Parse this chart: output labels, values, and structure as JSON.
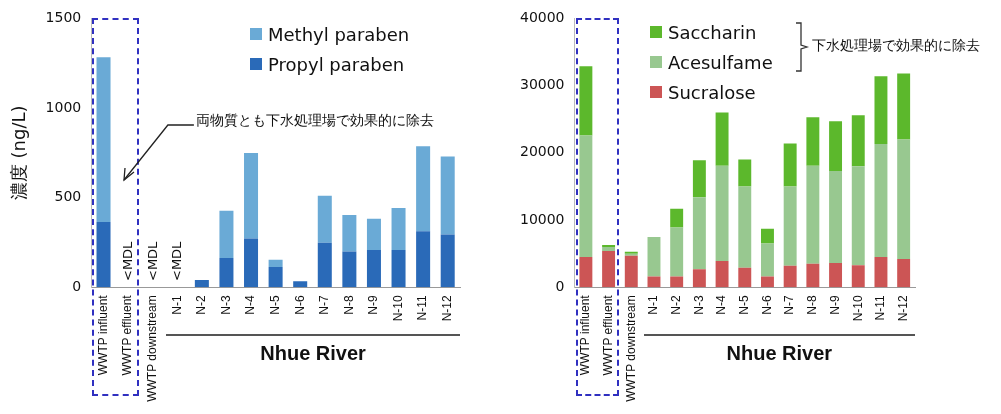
{
  "chart_data": [
    {
      "type": "bar",
      "ylabel": "濃度 (ng/L)",
      "categories": [
        "WWTP influent",
        "WWTP effluent",
        "WWTP downstream",
        "N-1",
        "N-2",
        "N-3",
        "N-4",
        "N-5",
        "N-6",
        "N-7",
        "N-8",
        "N-9",
        "N-10",
        "N-11",
        "N-12"
      ],
      "series": [
        {
          "name": "Propyl paraben",
          "color": "#2a6ab8",
          "values": [
            365,
            null,
            null,
            null,
            41,
            163,
            272,
            114,
            34,
            249,
            200,
            208,
            208,
            313,
            294
          ]
        },
        {
          "name": "Methyl paraben",
          "color": "#6aaad6",
          "values": [
            918,
            null,
            null,
            null,
            0,
            264,
            477,
            40,
            0,
            262,
            203,
            174,
            234,
            474,
            436
          ]
        }
      ],
      "stacked": true,
      "ylim": [
        0,
        1500
      ],
      "yticks": [
        0,
        500,
        1000,
        1500
      ],
      "grid": false,
      "legend": "top right",
      "annotations": [
        "<MDL",
        "<MDL",
        "<MDL",
        "両物質とも下水処理場で効果的に除去",
        "Nhue River"
      ]
    },
    {
      "type": "bar",
      "categories": [
        "WWTP influent",
        "WWTP effluent",
        "WWTP downstream",
        "N-1",
        "N-2",
        "N-3",
        "N-4",
        "N-5",
        "N-6",
        "N-7",
        "N-8",
        "N-9",
        "N-10",
        "N-11",
        "N-12"
      ],
      "series": [
        {
          "name": "Sucralose",
          "color": "#cc5555",
          "values": [
            4500,
            5400,
            4700,
            1600,
            1600,
            2700,
            3900,
            2900,
            1600,
            3200,
            3500,
            3600,
            3300,
            4500,
            4200
          ]
        },
        {
          "name": "Acesulfame",
          "color": "#98c890",
          "values": [
            18100,
            600,
            300,
            5900,
            7300,
            10700,
            14200,
            12100,
            4900,
            11800,
            14600,
            13700,
            14700,
            16800,
            17800
          ]
        },
        {
          "name": "Saccharin",
          "color": "#5cb82c",
          "values": [
            10300,
            300,
            300,
            0,
            2800,
            5500,
            7900,
            4000,
            2200,
            6400,
            7200,
            7400,
            7600,
            10100,
            9800
          ]
        }
      ],
      "stacked": true,
      "ylim": [
        0,
        40000
      ],
      "yticks": [
        0,
        10000,
        20000,
        30000,
        40000
      ],
      "grid": false,
      "legend": "top",
      "annotations": [
        "下水処理場で効果的に除去",
        "Nhue River"
      ]
    }
  ]
}
